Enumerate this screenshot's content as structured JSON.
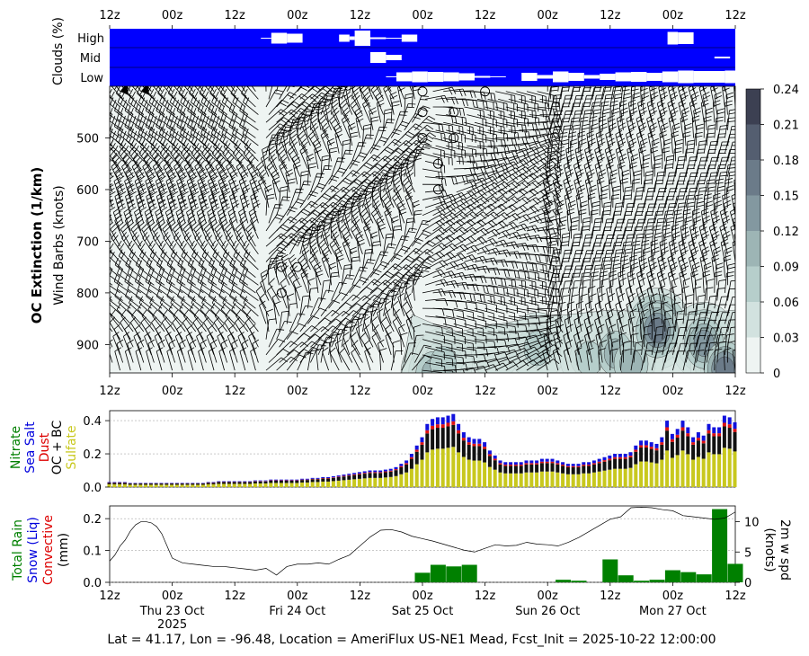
{
  "figure": {
    "footer": "Lat = 41.17, Lon = -96.48, Location = AmeriFlux US-NE1 Mead, Fcst_Init = 2025-10-22 12:00:00"
  },
  "time_axis": {
    "hour_ticks": [
      "12z",
      "00z",
      "12z",
      "00z",
      "12z",
      "00z",
      "12z",
      "00z",
      "12z",
      "00z",
      "12z"
    ],
    "day_labels": [
      "Thu 23 Oct",
      "Fri 24 Oct",
      "Sat 25 Oct",
      "Sun 26 Oct",
      "Mon 27 Oct"
    ],
    "year_label": "2025"
  },
  "colors": {
    "cloud_bg": "#0000ff",
    "cloud_cover": "#ffffff",
    "extinction_levels": [
      "#eef4f2",
      "#d2e2df",
      "#b6cecb",
      "#9db5b5",
      "#8398a0",
      "#6b7b89",
      "#545e70",
      "#3c4052",
      "#1a1a1e"
    ],
    "sulfate": "#c8c81e",
    "oc_bc": "#111111",
    "dust": "#dd1111",
    "sea_salt": "#1111dd",
    "rain": "#008000",
    "wind_line": "#000000"
  },
  "chart_data": [
    {
      "type": "heatmap",
      "name": "clouds",
      "ylabel": "Clouds (%)",
      "rows": [
        "High",
        "Mid",
        "Low"
      ],
      "x_hours": [
        0,
        6,
        12,
        18,
        24,
        30,
        36,
        42,
        48,
        54,
        60,
        66,
        72,
        78,
        84,
        90,
        96,
        102,
        108,
        114,
        120
      ],
      "high": [
        0,
        0,
        0,
        0,
        0,
        0,
        0,
        0,
        0,
        0,
        0,
        0,
        0,
        0,
        0,
        0,
        0,
        0,
        0,
        0,
        0
      ],
      "high_segments": [
        [
          29,
          31,
          5
        ],
        [
          31,
          34,
          60
        ],
        [
          34,
          37,
          50
        ],
        [
          44,
          46,
          40
        ],
        [
          46,
          47,
          20
        ],
        [
          47,
          50,
          85
        ],
        [
          50,
          53,
          10
        ],
        [
          53,
          56,
          5
        ],
        [
          56,
          59,
          40
        ],
        [
          107,
          109,
          70
        ],
        [
          109,
          112,
          65
        ]
      ],
      "mid_segments": [
        [
          50,
          53,
          60
        ],
        [
          53,
          56,
          30
        ],
        [
          116,
          119,
          10
        ]
      ],
      "low_segments": [
        [
          53,
          55,
          5
        ],
        [
          55,
          58,
          50
        ],
        [
          58,
          61,
          60
        ],
        [
          61,
          64,
          55
        ],
        [
          64,
          67,
          50
        ],
        [
          67,
          70,
          40
        ],
        [
          70,
          73,
          10
        ],
        [
          73,
          76,
          5
        ],
        [
          79,
          82,
          45
        ],
        [
          82,
          85,
          20
        ],
        [
          85,
          88,
          60
        ],
        [
          88,
          91,
          45
        ],
        [
          91,
          94,
          20
        ],
        [
          94,
          97,
          35
        ],
        [
          97,
          100,
          50
        ],
        [
          100,
          103,
          55
        ],
        [
          103,
          106,
          45
        ],
        [
          106,
          109,
          60
        ],
        [
          109,
          112,
          70
        ],
        [
          112,
          115,
          65
        ],
        [
          115,
          118,
          65
        ],
        [
          118,
          120,
          70
        ]
      ]
    },
    {
      "type": "heatmap",
      "name": "oc_extinction",
      "ylabel": "OC Extinction (1/km)",
      "ylabel2": "Wind Barbs (knots)",
      "yticks": [
        500,
        600,
        700,
        800,
        900
      ],
      "ylim": [
        955,
        400
      ],
      "colorbar_ticks": [
        "0",
        "0.03",
        "0.06",
        "0.09",
        "0.12",
        "0.15",
        "0.18",
        "0.21",
        "0.24"
      ],
      "colorbar_range": [
        0,
        0.24
      ],
      "hot_spots": [
        {
          "t": 62,
          "p": 940,
          "v": 0.09
        },
        {
          "t": 64,
          "p": 920,
          "v": 0.07
        },
        {
          "t": 74,
          "p": 900,
          "v": 0.05
        },
        {
          "t": 82,
          "p": 890,
          "v": 0.07
        },
        {
          "t": 92,
          "p": 910,
          "v": 0.06
        },
        {
          "t": 97,
          "p": 900,
          "v": 0.1
        },
        {
          "t": 105,
          "p": 855,
          "v": 0.17
        },
        {
          "t": 100,
          "p": 920,
          "v": 0.09
        },
        {
          "t": 114,
          "p": 880,
          "v": 0.12
        },
        {
          "t": 118,
          "p": 930,
          "v": 0.16
        }
      ],
      "calm_points": [
        [
          60,
          410
        ],
        [
          72,
          410
        ],
        [
          60,
          450
        ],
        [
          66,
          450
        ],
        [
          60,
          500
        ],
        [
          66,
          500
        ],
        [
          63,
          550
        ],
        [
          63,
          600
        ],
        [
          33,
          750
        ],
        [
          36,
          750
        ],
        [
          33,
          800
        ]
      ]
    },
    {
      "type": "bar",
      "name": "aerosol_aod",
      "ylabel_parts": [
        "Nitrate",
        "Sea Salt",
        "Dust",
        "OC + BC",
        "Sulfate"
      ],
      "yticks": [
        "0.0",
        "0.2",
        "0.4"
      ],
      "ylim": [
        0,
        0.46
      ],
      "x_hours": [
        0,
        1,
        2,
        3,
        4,
        5,
        6,
        7,
        8,
        9,
        10,
        11,
        12,
        13,
        14,
        15,
        16,
        17,
        18,
        19,
        20,
        21,
        22,
        23,
        24,
        25,
        26,
        27,
        28,
        29,
        30,
        31,
        32,
        33,
        34,
        35,
        36,
        37,
        38,
        39,
        40,
        41,
        42,
        43,
        44,
        45,
        46,
        47,
        48,
        49,
        50,
        51,
        52,
        53,
        54,
        55,
        56,
        57,
        58,
        59,
        60,
        61,
        62,
        63,
        64,
        65,
        66,
        67,
        68,
        69,
        70,
        71,
        72,
        73,
        74,
        75,
        76,
        77,
        78,
        79,
        80,
        81,
        82,
        83,
        84,
        85,
        86,
        87,
        88,
        89,
        90,
        91,
        92,
        93,
        94,
        95,
        96,
        97,
        98,
        99,
        100,
        101,
        102,
        103,
        104,
        105,
        106,
        107,
        108,
        109,
        110,
        111,
        112,
        113,
        114,
        115,
        116,
        117,
        118,
        119,
        120
      ],
      "total": [
        0.03,
        0.03,
        0.03,
        0.03,
        0.025,
        0.025,
        0.025,
        0.025,
        0.025,
        0.025,
        0.025,
        0.025,
        0.025,
        0.025,
        0.025,
        0.025,
        0.025,
        0.025,
        0.025,
        0.03,
        0.03,
        0.035,
        0.035,
        0.035,
        0.035,
        0.035,
        0.035,
        0.035,
        0.04,
        0.04,
        0.04,
        0.045,
        0.045,
        0.045,
        0.045,
        0.045,
        0.045,
        0.05,
        0.05,
        0.055,
        0.055,
        0.06,
        0.06,
        0.065,
        0.07,
        0.075,
        0.08,
        0.085,
        0.09,
        0.095,
        0.1,
        0.1,
        0.1,
        0.105,
        0.11,
        0.12,
        0.14,
        0.16,
        0.2,
        0.25,
        0.3,
        0.38,
        0.41,
        0.42,
        0.42,
        0.43,
        0.44,
        0.38,
        0.33,
        0.3,
        0.29,
        0.29,
        0.27,
        0.22,
        0.19,
        0.16,
        0.15,
        0.15,
        0.15,
        0.15,
        0.16,
        0.16,
        0.16,
        0.17,
        0.17,
        0.17,
        0.16,
        0.15,
        0.14,
        0.14,
        0.14,
        0.15,
        0.15,
        0.16,
        0.17,
        0.18,
        0.19,
        0.2,
        0.2,
        0.2,
        0.21,
        0.25,
        0.28,
        0.28,
        0.27,
        0.26,
        0.3,
        0.4,
        0.32,
        0.35,
        0.4,
        0.36,
        0.3,
        0.33,
        0.31,
        0.38,
        0.36,
        0.36,
        0.43,
        0.42,
        0.39
      ],
      "sulfate_frac": 0.55,
      "oc_frac": 0.3,
      "dust_frac": 0.05,
      "salt_frac": 0.1
    },
    {
      "type": "bar",
      "name": "precipitation",
      "ylabel_parts": [
        "Total Rain",
        "Snow (Liq)",
        "Convective",
        "(mm)"
      ],
      "ylabel_right": "2m w spd\n(knots)",
      "yticks": [
        "0.0",
        "0.1",
        "0.2"
      ],
      "ylim": [
        0,
        0.24
      ],
      "yticks_right": [
        "0",
        "5",
        "10"
      ],
      "ylim_right": [
        0,
        12.6
      ],
      "bars": [
        [
          60,
          0.03
        ],
        [
          63,
          0.055
        ],
        [
          66,
          0.05
        ],
        [
          69,
          0.055
        ],
        [
          87,
          0.008
        ],
        [
          90,
          0.005
        ],
        [
          96,
          0.072
        ],
        [
          99,
          0.022
        ],
        [
          102,
          0.005
        ],
        [
          105,
          0.008
        ],
        [
          108,
          0.038
        ],
        [
          111,
          0.032
        ],
        [
          114,
          0.025
        ],
        [
          117,
          0.23
        ],
        [
          120,
          0.058
        ]
      ],
      "wind_hours": [
        0,
        1,
        2,
        3,
        4,
        5,
        6,
        7,
        8,
        9,
        10,
        11,
        12,
        14,
        16,
        18,
        20,
        22,
        24,
        26,
        28,
        30,
        32,
        34,
        36,
        38,
        40,
        42,
        44,
        46,
        48,
        50,
        52,
        54,
        56,
        58,
        60,
        62,
        64,
        66,
        68,
        70,
        72,
        74,
        76,
        78,
        80,
        82,
        84,
        86,
        88,
        90,
        92,
        94,
        96,
        98,
        100,
        102,
        104,
        106,
        108,
        110,
        112,
        114,
        116,
        118,
        120
      ],
      "wind_speed": [
        3.5,
        4.5,
        6,
        7,
        8.5,
        9.5,
        10,
        10,
        9.8,
        9.2,
        8,
        6,
        4,
        3.2,
        3,
        2.8,
        2.6,
        2.6,
        2.4,
        2.2,
        2,
        2.3,
        1.2,
        2.6,
        3,
        3,
        3.2,
        3,
        3.8,
        4.5,
        6,
        7.5,
        8.6,
        8.7,
        8.3,
        7.6,
        7.2,
        6.8,
        6.3,
        5.8,
        5.3,
        5,
        5.6,
        6.2,
        6,
        6.1,
        6.6,
        6.3,
        6.2,
        6,
        6.6,
        7.4,
        8.4,
        9.4,
        10.4,
        10.8,
        12.3,
        12.4,
        12.3,
        12,
        11.8,
        11,
        10.8,
        10.6,
        10.4,
        10.6,
        11.6
      ]
    }
  ]
}
